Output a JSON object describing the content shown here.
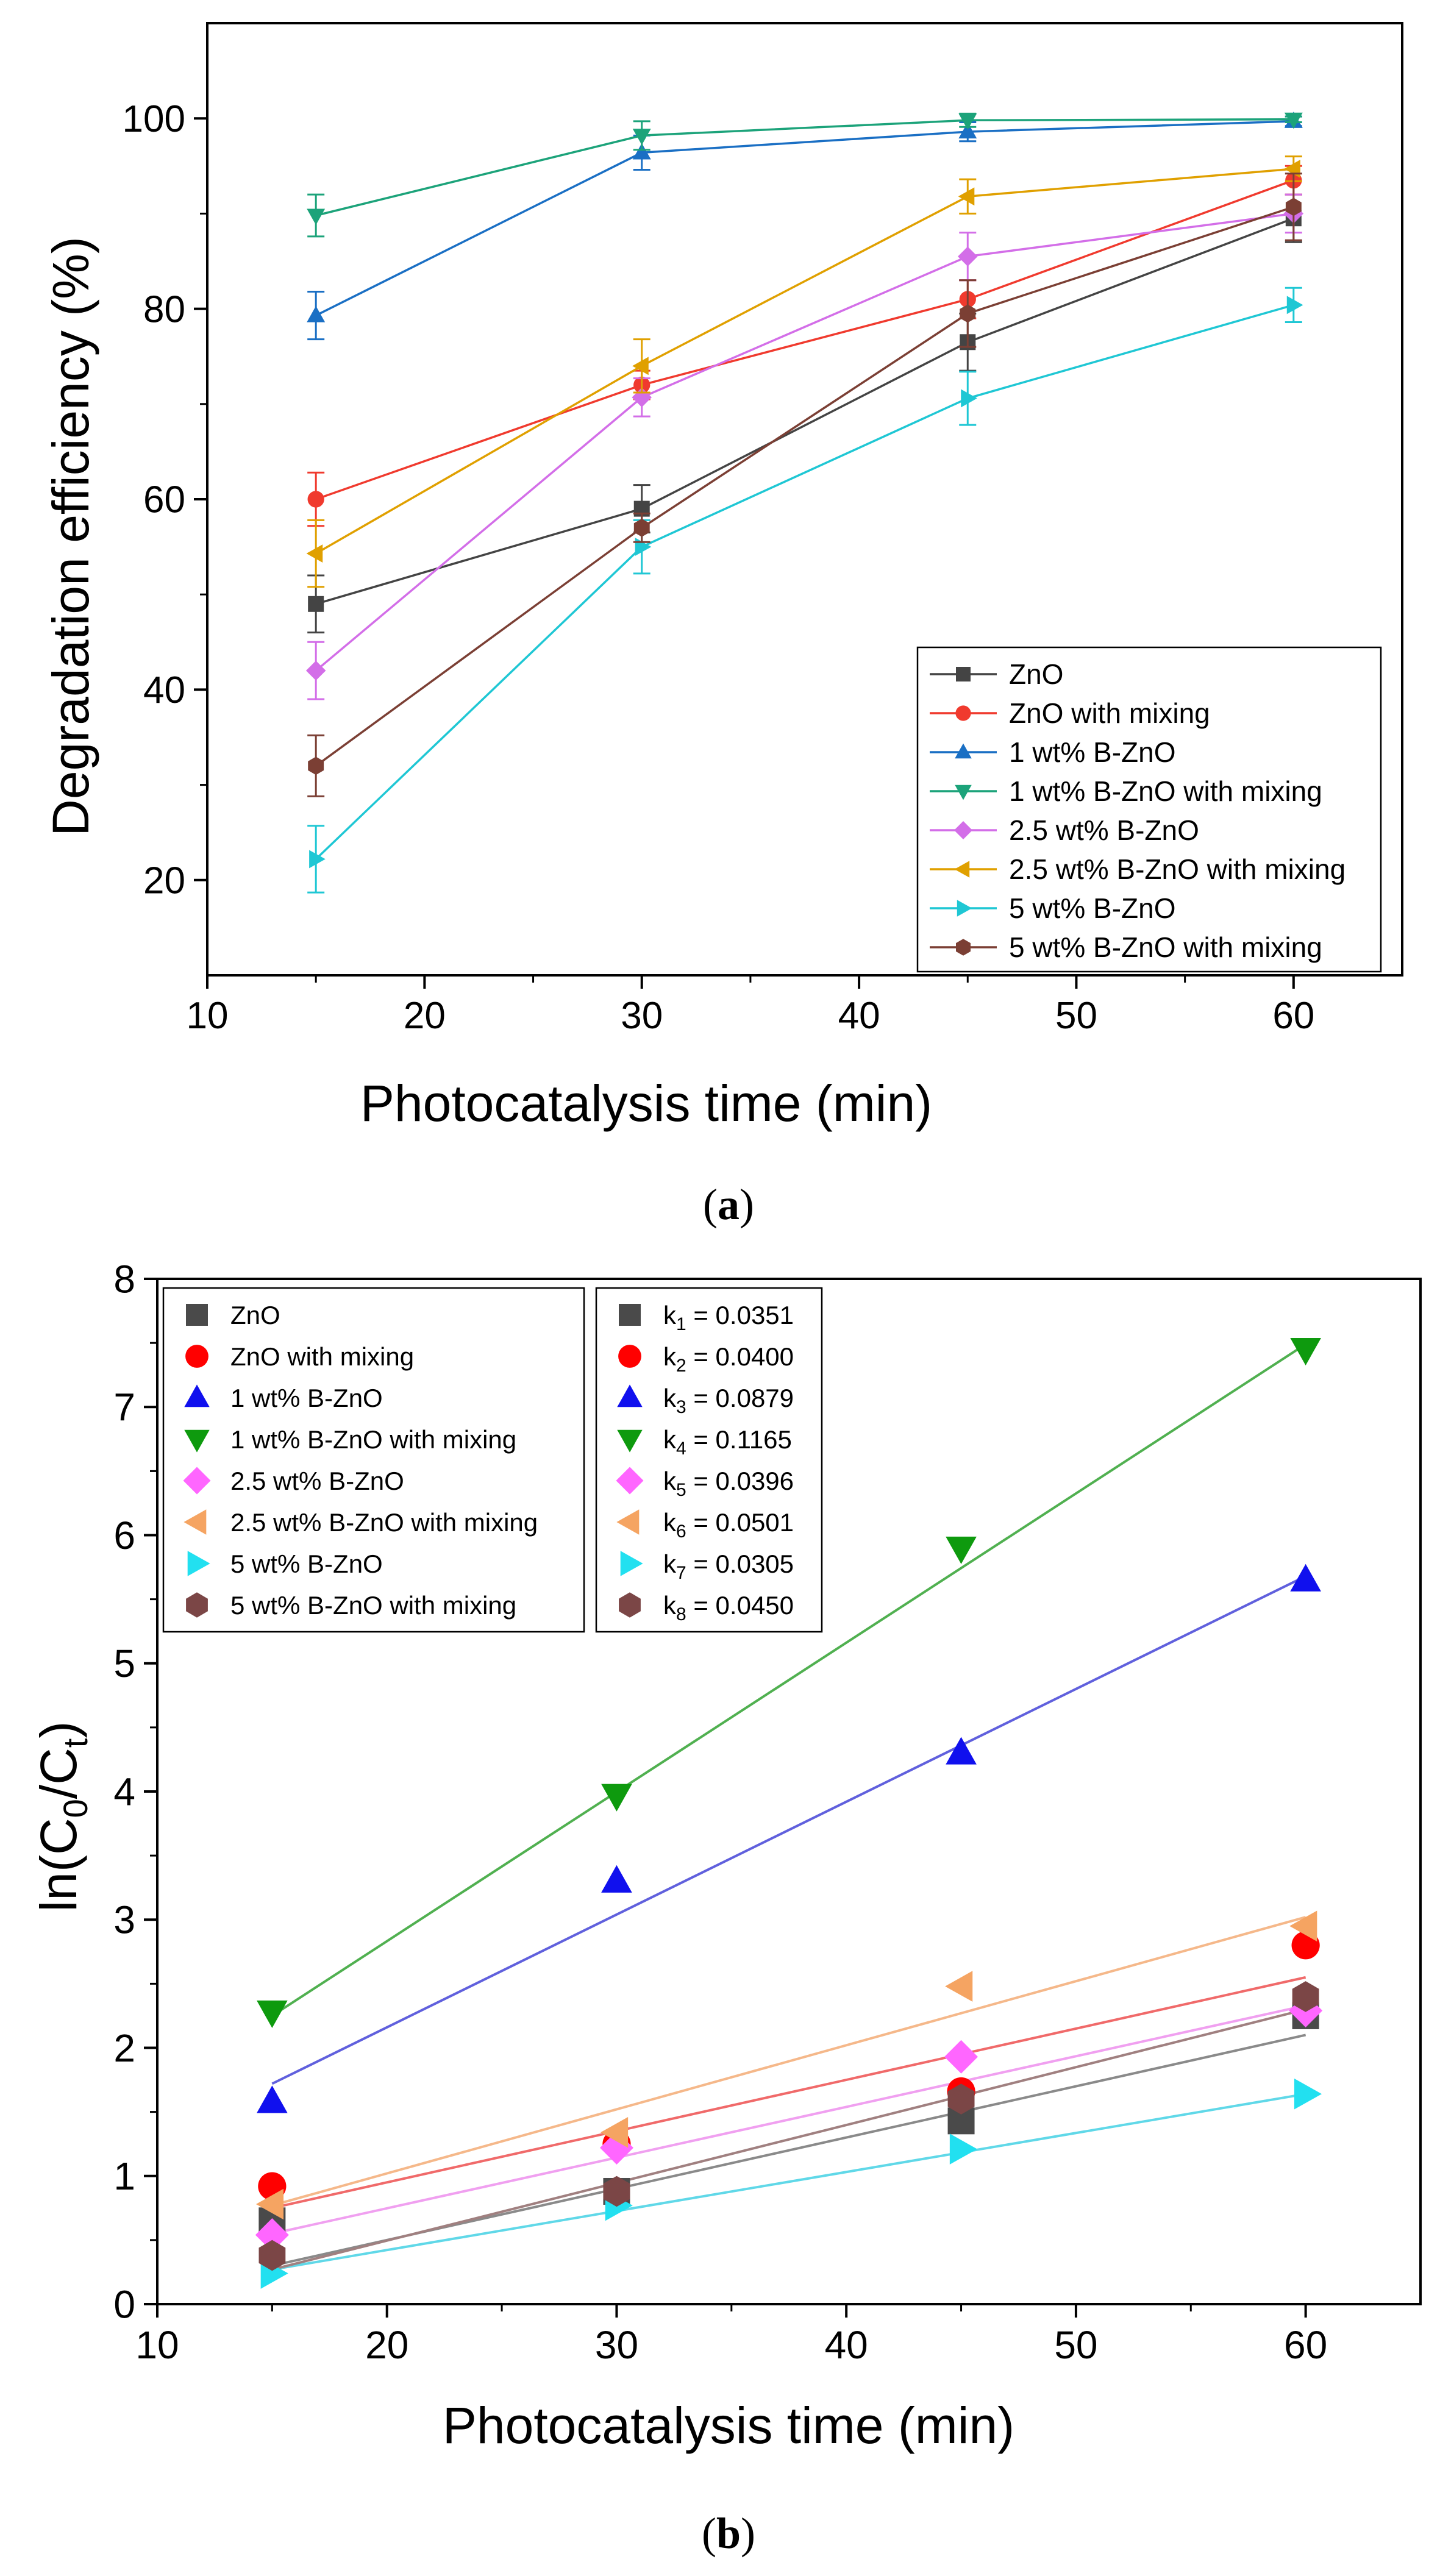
{
  "chart_data": [
    {
      "type": "line",
      "panel_label": "a",
      "xlabel": "Photocatalysis time (min)",
      "ylabel": "Degradation efficiency (%)",
      "xlim": [
        10,
        65
      ],
      "ylim": [
        10,
        110
      ],
      "x_ticks": [
        10,
        20,
        30,
        40,
        50,
        60
      ],
      "y_ticks": [
        20,
        40,
        60,
        80,
        100
      ],
      "x": [
        15,
        30,
        45,
        60
      ],
      "legend_position": "bottom-right",
      "series": [
        {
          "name": "ZnO",
          "values": [
            49,
            59,
            76.5,
            89.5
          ],
          "errors": [
            3,
            2.5,
            3,
            2.5
          ],
          "color": "#444444",
          "marker": "square"
        },
        {
          "name": "ZnO with mixing",
          "values": [
            60,
            72,
            81,
            93.5
          ],
          "errors": [
            2.8,
            1.5,
            2,
            1.5
          ],
          "color": "#f03a2e",
          "marker": "circle"
        },
        {
          "name": "1 wt% B-ZnO",
          "values": [
            79.3,
            96.4,
            98.6,
            99.7
          ],
          "errors": [
            2.5,
            1.8,
            1,
            0.5
          ],
          "color": "#1a6fc4",
          "marker": "triangle-up"
        },
        {
          "name": "1 wt% B-ZnO with mixing",
          "values": [
            89.8,
            98.2,
            99.8,
            99.9
          ],
          "errors": [
            2.2,
            1.5,
            0.7,
            0.3
          ],
          "color": "#1ca37a",
          "marker": "triangle-down"
        },
        {
          "name": "2.5 wt% B-ZnO",
          "values": [
            42,
            70.7,
            85.5,
            90
          ],
          "errors": [
            3,
            2,
            2.5,
            2
          ],
          "color": "#d36ee8",
          "marker": "diamond"
        },
        {
          "name": "2.5 wt% B-ZnO with mixing",
          "values": [
            54.3,
            74,
            91.8,
            94.7
          ],
          "errors": [
            3.5,
            2.8,
            1.8,
            1.3
          ],
          "color": "#e0a000",
          "marker": "triangle-left"
        },
        {
          "name": "5 wt% B-ZnO",
          "values": [
            22.2,
            55,
            70.6,
            80.4
          ],
          "errors": [
            3.5,
            2.8,
            2.8,
            1.8
          ],
          "color": "#1fc7d4",
          "marker": "triangle-right"
        },
        {
          "name": "5 wt% B-ZnO with mixing",
          "values": [
            32,
            57,
            79.5,
            90.7
          ],
          "errors": [
            3.2,
            1.5,
            3.5,
            3.5
          ],
          "color": "#7b3f34",
          "marker": "hexagon"
        }
      ]
    },
    {
      "type": "scatter",
      "panel_label": "b",
      "xlabel": "Photocatalysis time (min)",
      "ylabel_prefix": "ln(C",
      "ylabel_sub0": "0",
      "ylabel_mid": "/C",
      "ylabel_subt": "t",
      "ylabel_suffix": ")",
      "xlim": [
        10,
        65
      ],
      "ylim": [
        0,
        8
      ],
      "x_ticks": [
        10,
        20,
        30,
        40,
        50,
        60
      ],
      "y_ticks": [
        0,
        1,
        2,
        3,
        4,
        5,
        6,
        7,
        8
      ],
      "x": [
        15,
        30,
        45,
        60
      ],
      "legend_position": "top-left",
      "k_legend_position": "top-center",
      "series": [
        {
          "name": "ZnO",
          "k_label": "k",
          "k_sub": "1",
          "k_value": " = 0.0351",
          "values": [
            0.65,
            0.88,
            1.43,
            2.25
          ],
          "fit": [
            0.3,
            2.1
          ],
          "color": "#4a4a4a",
          "line_color": "#8a8a8a",
          "marker": "square"
        },
        {
          "name": "ZnO with mixing",
          "k_label": "k",
          "k_sub": "2",
          "k_value": " = 0.0400",
          "values": [
            0.92,
            1.25,
            1.66,
            2.8
          ],
          "fit": [
            0.75,
            2.55
          ],
          "color": "#ff0000",
          "line_color": "#f06a6a",
          "marker": "circle"
        },
        {
          "name": "1 wt% B-ZnO",
          "k_label": "k",
          "k_sub": "3",
          "k_value": " = 0.0879",
          "values": [
            1.58,
            3.3,
            4.3,
            5.65
          ],
          "fit": [
            1.72,
            5.68
          ],
          "color": "#1010ee",
          "line_color": "#6060dd",
          "marker": "triangle-up"
        },
        {
          "name": "1 wt% B-ZnO with mixing",
          "k_label": "k",
          "k_sub": "4",
          "k_value": " = 0.1165",
          "values": [
            2.28,
            3.97,
            5.9,
            7.45
          ],
          "fit": [
            2.25,
            7.49
          ],
          "color": "#0e9a0e",
          "line_color": "#50b050",
          "marker": "triangle-down"
        },
        {
          "name": "2.5 wt% B-ZnO",
          "k_label": "k",
          "k_sub": "5",
          "k_value": " = 0.0396",
          "values": [
            0.54,
            1.22,
            1.93,
            2.29
          ],
          "fit": [
            0.55,
            2.33
          ],
          "color": "#ff66ff",
          "line_color": "#f0a0f0",
          "marker": "diamond"
        },
        {
          "name": "2.5 wt% B-ZnO with mixing",
          "k_label": "k",
          "k_sub": "6",
          "k_value": " = 0.0501",
          "values": [
            0.78,
            1.34,
            2.48,
            2.95
          ],
          "fit": [
            0.77,
            3.02
          ],
          "color": "#f5a462",
          "line_color": "#f5b88a",
          "marker": "triangle-left"
        },
        {
          "name": "5 wt% B-ZnO",
          "k_label": "k",
          "k_sub": "7",
          "k_value": " = 0.0305",
          "values": [
            0.24,
            0.77,
            1.21,
            1.64
          ],
          "fit": [
            0.27,
            1.64
          ],
          "color": "#22e0f0",
          "line_color": "#60d8e8",
          "marker": "triangle-right"
        },
        {
          "name": "5 wt% B-ZnO with mixing",
          "k_label": "k",
          "k_sub": "8",
          "k_value": " = 0.0450",
          "values": [
            0.38,
            0.88,
            1.6,
            2.4
          ],
          "fit": [
            0.27,
            2.3
          ],
          "color": "#7b4646",
          "line_color": "#a08080",
          "marker": "hexagon"
        }
      ]
    }
  ]
}
